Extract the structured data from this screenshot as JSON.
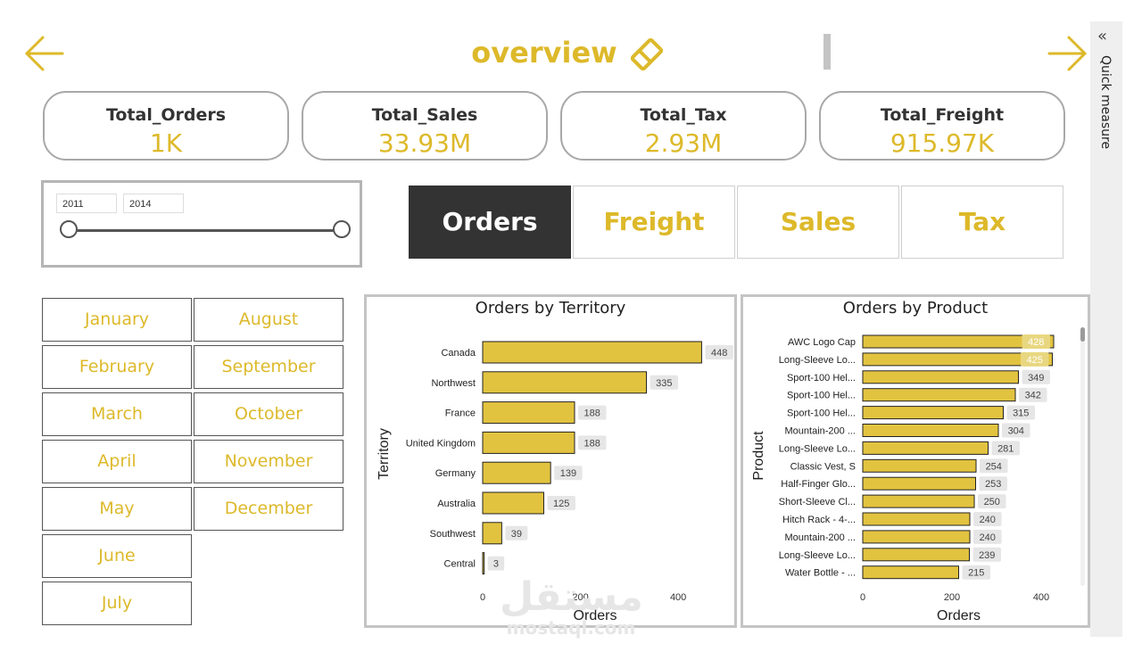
{
  "header": {
    "title": "overview",
    "back_icon": "arrow-left-icon",
    "forward_icon": "arrow-right-icon",
    "title_icon": "eraser-icon",
    "accent_color": "#DDB92A"
  },
  "side_pane": {
    "label": "Quick measure",
    "chevron": "«"
  },
  "kpis": [
    {
      "label": "Total_Orders",
      "value": "1K"
    },
    {
      "label": "Total_Sales",
      "value": "33.93M"
    },
    {
      "label": "Total_Tax",
      "value": "2.93M"
    },
    {
      "label": "Total_Freight",
      "value": "915.97K"
    }
  ],
  "year_slicer": {
    "start": "2011",
    "end": "2014"
  },
  "measure_buttons": [
    {
      "label": "Orders",
      "active": true
    },
    {
      "label": "Freight",
      "active": false
    },
    {
      "label": "Sales",
      "active": false
    },
    {
      "label": "Tax",
      "active": false
    }
  ],
  "months": {
    "col1": [
      "January",
      "February",
      "March",
      "April",
      "May",
      "June",
      "July"
    ],
    "col2": [
      "August",
      "September",
      "October",
      "November",
      "December"
    ]
  },
  "chart_data": [
    {
      "type": "bar",
      "orientation": "horizontal",
      "title": "Orders by Territory",
      "xlabel": "Orders",
      "ylabel": "Territory",
      "categories": [
        "Canada",
        "Northwest",
        "France",
        "United Kingdom",
        "Germany",
        "Australia",
        "Southwest",
        "Central"
      ],
      "values": [
        448,
        335,
        188,
        188,
        139,
        125,
        39,
        3
      ],
      "xticks": [
        0,
        200,
        400
      ],
      "xlim": [
        0,
        460
      ],
      "bar_color": "#E2C340"
    },
    {
      "type": "bar",
      "orientation": "horizontal",
      "title": "Orders by Product",
      "xlabel": "Orders",
      "ylabel": "Product",
      "categories": [
        "AWC Logo Cap",
        "Long-Sleeve Lo...",
        "Sport-100 Hel...",
        "Sport-100 Hel...",
        "Sport-100 Hel...",
        "Mountain-200 ...",
        "Long-Sleeve Lo...",
        "Classic Vest, S",
        "Half-Finger Glo...",
        "Short-Sleeve Cl...",
        "Hitch Rack - 4-...",
        "Mountain-200 ...",
        "Long-Sleeve Lo...",
        "Water Bottle - ..."
      ],
      "values": [
        428,
        425,
        349,
        342,
        315,
        304,
        281,
        254,
        253,
        250,
        240,
        240,
        239,
        215
      ],
      "xticks": [
        0,
        200,
        400
      ],
      "xlim": [
        0,
        430
      ],
      "bar_color": "#E2C340"
    }
  ],
  "watermark": {
    "arabic": "مستقل",
    "latin": "mostaql.com"
  }
}
